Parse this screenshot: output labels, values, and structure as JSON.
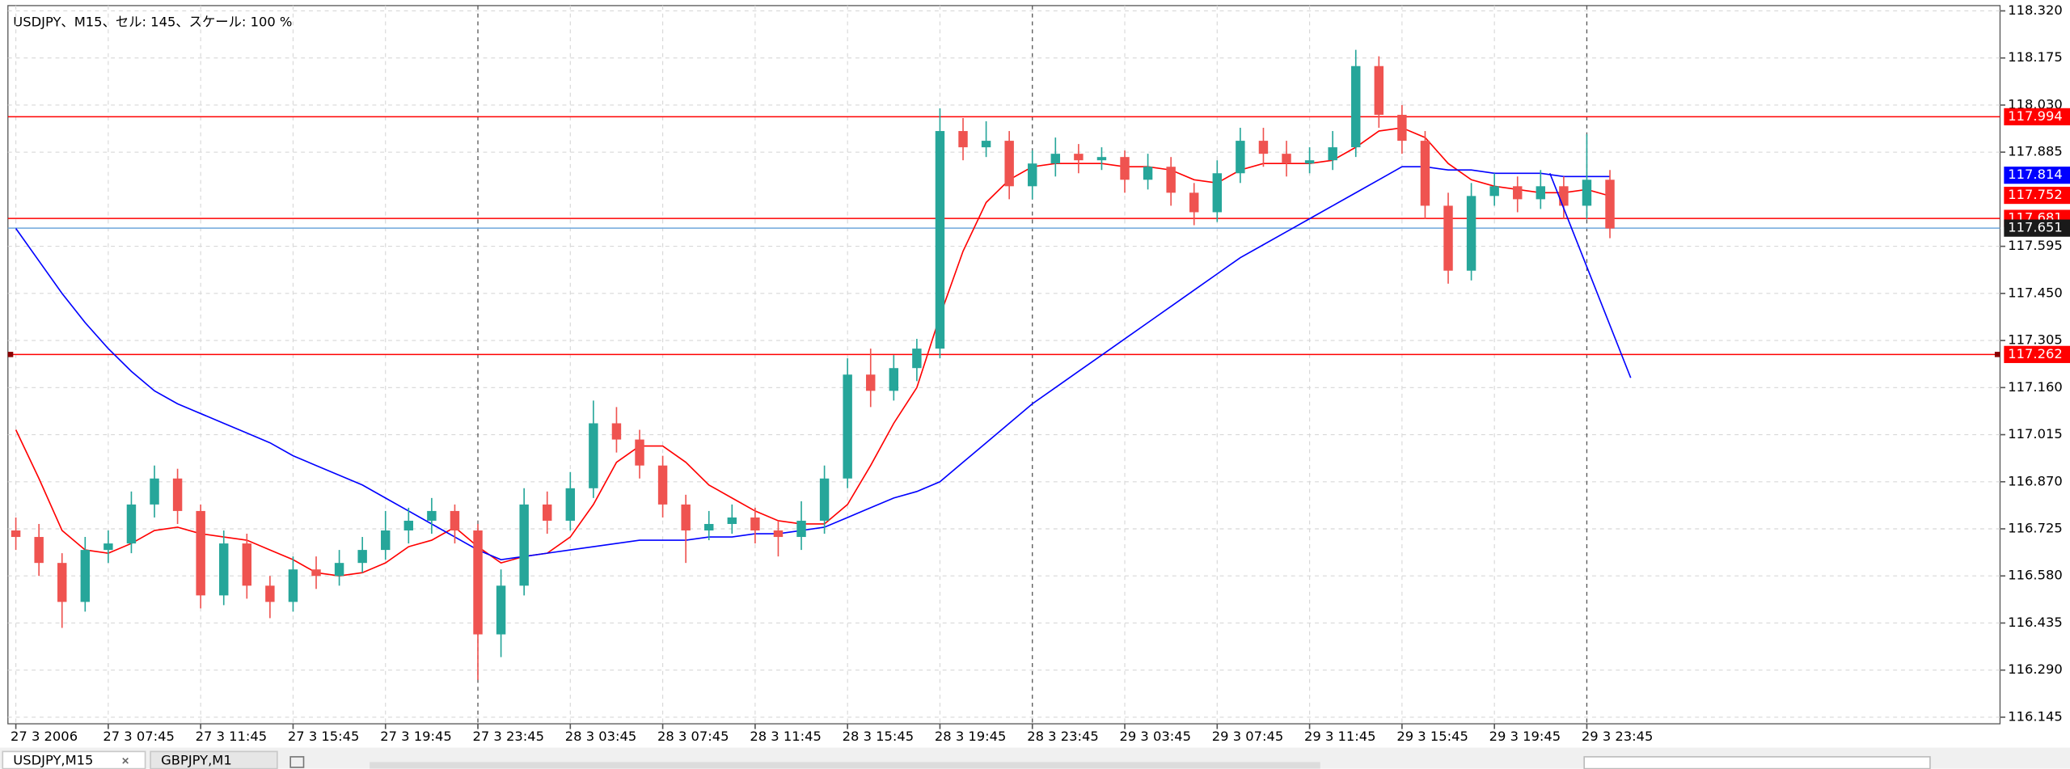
{
  "chart_data": {
    "type": "candlestick",
    "title": "USDJPY、M15、セル: 145、スケール: 100 %",
    "up_color": "#26a69a",
    "down_color": "#ef5350",
    "candles": [
      [
        116.72,
        116.76,
        116.66,
        116.7
      ],
      [
        116.7,
        116.74,
        116.58,
        116.62
      ],
      [
        116.62,
        116.65,
        116.42,
        116.5
      ],
      [
        116.5,
        116.7,
        116.47,
        116.66
      ],
      [
        116.66,
        116.72,
        116.62,
        116.68
      ],
      [
        116.68,
        116.84,
        116.65,
        116.8
      ],
      [
        116.8,
        116.92,
        116.76,
        116.88
      ],
      [
        116.88,
        116.91,
        116.74,
        116.78
      ],
      [
        116.78,
        116.8,
        116.48,
        116.52
      ],
      [
        116.52,
        116.72,
        116.49,
        116.68
      ],
      [
        116.68,
        116.71,
        116.51,
        116.55
      ],
      [
        116.55,
        116.58,
        116.45,
        116.5
      ],
      [
        116.5,
        116.64,
        116.47,
        116.6
      ],
      [
        116.6,
        116.64,
        116.54,
        116.58
      ],
      [
        116.58,
        116.66,
        116.55,
        116.62
      ],
      [
        116.62,
        116.7,
        116.59,
        116.66
      ],
      [
        116.66,
        116.78,
        116.63,
        116.72
      ],
      [
        116.72,
        116.79,
        116.68,
        116.75
      ],
      [
        116.75,
        116.82,
        116.71,
        116.78
      ],
      [
        116.78,
        116.8,
        116.68,
        116.72
      ],
      [
        116.72,
        116.74,
        116.26,
        116.4
      ],
      [
        116.4,
        116.6,
        116.33,
        116.55
      ],
      [
        116.55,
        116.85,
        116.52,
        116.8
      ],
      [
        116.8,
        116.84,
        116.71,
        116.75
      ],
      [
        116.75,
        116.9,
        116.72,
        116.85
      ],
      [
        116.85,
        117.12,
        116.82,
        117.05
      ],
      [
        117.05,
        117.1,
        116.96,
        117.0
      ],
      [
        117.0,
        117.03,
        116.88,
        116.92
      ],
      [
        116.92,
        116.95,
        116.76,
        116.8
      ],
      [
        116.8,
        116.83,
        116.62,
        116.72
      ],
      [
        116.72,
        116.78,
        116.69,
        116.74
      ],
      [
        116.74,
        116.8,
        116.71,
        116.76
      ],
      [
        116.76,
        116.79,
        116.68,
        116.72
      ],
      [
        116.72,
        116.75,
        116.64,
        116.7
      ],
      [
        116.7,
        116.81,
        116.66,
        116.75
      ],
      [
        116.75,
        116.92,
        116.71,
        116.88
      ],
      [
        116.88,
        117.25,
        116.85,
        117.2
      ],
      [
        117.2,
        117.28,
        117.1,
        117.15
      ],
      [
        117.15,
        117.26,
        117.12,
        117.22
      ],
      [
        117.22,
        117.31,
        117.18,
        117.28
      ],
      [
        117.28,
        118.02,
        117.25,
        117.95
      ],
      [
        117.95,
        117.99,
        117.86,
        117.9
      ],
      [
        117.9,
        117.98,
        117.87,
        117.92
      ],
      [
        117.92,
        117.95,
        117.74,
        117.78
      ],
      [
        117.78,
        117.89,
        117.74,
        117.85
      ],
      [
        117.85,
        117.93,
        117.81,
        117.88
      ],
      [
        117.88,
        117.91,
        117.82,
        117.86
      ],
      [
        117.86,
        117.9,
        117.83,
        117.87
      ],
      [
        117.87,
        117.89,
        117.76,
        117.8
      ],
      [
        117.8,
        117.88,
        117.77,
        117.84
      ],
      [
        117.84,
        117.87,
        117.72,
        117.76
      ],
      [
        117.76,
        117.79,
        117.66,
        117.7
      ],
      [
        117.7,
        117.86,
        117.67,
        117.82
      ],
      [
        117.82,
        117.96,
        117.79,
        117.92
      ],
      [
        117.92,
        117.96,
        117.84,
        117.88
      ],
      [
        117.88,
        117.92,
        117.81,
        117.85
      ],
      [
        117.85,
        117.9,
        117.82,
        117.86
      ],
      [
        117.86,
        117.95,
        117.83,
        117.9
      ],
      [
        117.9,
        118.2,
        117.87,
        118.15
      ],
      [
        118.15,
        118.18,
        117.96,
        118.0
      ],
      [
        118.0,
        118.03,
        117.88,
        117.92
      ],
      [
        117.92,
        117.95,
        117.68,
        117.72
      ],
      [
        117.72,
        117.76,
        117.48,
        117.52
      ],
      [
        117.52,
        117.79,
        117.49,
        117.75
      ],
      [
        117.75,
        117.82,
        117.72,
        117.78
      ],
      [
        117.78,
        117.81,
        117.7,
        117.74
      ],
      [
        117.74,
        117.83,
        117.71,
        117.78
      ],
      [
        117.78,
        117.81,
        117.68,
        117.72
      ],
      [
        117.72,
        117.94,
        117.68,
        117.8
      ],
      [
        117.8,
        117.83,
        117.62,
        117.65
      ]
    ],
    "series": [
      {
        "color": "#ff0000",
        "current": 117.752,
        "values": [
          117.03,
          116.88,
          116.72,
          116.66,
          116.65,
          116.68,
          116.72,
          116.73,
          116.71,
          116.7,
          116.69,
          116.66,
          116.63,
          116.59,
          116.58,
          116.59,
          116.62,
          116.67,
          116.69,
          116.73,
          116.67,
          116.62,
          116.64,
          116.65,
          116.7,
          116.8,
          116.93,
          116.98,
          116.98,
          116.93,
          116.86,
          116.82,
          116.78,
          116.75,
          116.74,
          116.74,
          116.8,
          116.92,
          117.05,
          117.16,
          117.38,
          117.58,
          117.73,
          117.8,
          117.84,
          117.85,
          117.85,
          117.85,
          117.84,
          117.84,
          117.83,
          117.8,
          117.79,
          117.83,
          117.85,
          117.85,
          117.85,
          117.86,
          117.9,
          117.95,
          117.96,
          117.93,
          117.85,
          117.8,
          117.78,
          117.77,
          117.76,
          117.76,
          117.77,
          117.75
        ]
      },
      {
        "color": "#0000ff",
        "current": 117.814,
        "values": [
          117.65,
          117.55,
          117.45,
          117.36,
          117.28,
          117.21,
          117.15,
          117.11,
          117.08,
          117.05,
          117.02,
          116.99,
          116.95,
          116.92,
          116.89,
          116.86,
          116.82,
          116.78,
          116.74,
          116.7,
          116.66,
          116.63,
          116.64,
          116.65,
          116.66,
          116.67,
          116.68,
          116.69,
          116.69,
          116.69,
          116.7,
          116.7,
          116.71,
          116.71,
          116.72,
          116.73,
          116.76,
          116.79,
          116.82,
          116.84,
          116.87,
          116.93,
          116.99,
          117.05,
          117.11,
          117.16,
          117.21,
          117.26,
          117.31,
          117.36,
          117.41,
          117.46,
          117.51,
          117.56,
          117.6,
          117.64,
          117.68,
          117.72,
          117.76,
          117.8,
          117.84,
          117.84,
          117.83,
          117.83,
          117.82,
          117.82,
          117.82,
          117.81,
          117.81,
          117.81
        ]
      }
    ],
    "trendline": {
      "color": "#0000ff",
      "x": [
        66.4,
        69.9
      ],
      "values": [
        117.82,
        117.19
      ]
    },
    "levels": [
      {
        "value": 117.994,
        "color": "#ff0000",
        "label_color": "#ff0000"
      },
      {
        "value": 117.681,
        "color": "#ff0000",
        "label_color": "#ff0000"
      },
      {
        "value": 117.651,
        "color": "#6fa8dc",
        "label_color": "#1a1a1a"
      },
      {
        "value": 117.262,
        "color": "#ff0000",
        "label_color": "#ff0000"
      }
    ],
    "x_labels": [
      "27 3 2006",
      "27 3 07:45",
      "27 3 11:45",
      "27 3 15:45",
      "27 3 19:45",
      "27 3 23:45",
      "28 3 03:45",
      "28 3 07:45",
      "28 3 11:45",
      "28 3 15:45",
      "28 3 19:45",
      "28 3 23:45",
      "29 3 03:45",
      "29 3 07:45",
      "29 3 11:45",
      "29 3 15:45",
      "29 3 19:45",
      "29 3 23:45"
    ],
    "ylim": [
      116.145,
      118.32
    ],
    "yticks": [
      {
        "value": 118.32,
        "label": "118.320"
      },
      {
        "value": 118.175,
        "label": "118.175"
      },
      {
        "value": 118.03,
        "label": "118.030"
      },
      {
        "value": 117.885,
        "label": "117.885"
      },
      {
        "value": 117.595,
        "label": "117.595"
      },
      {
        "value": 117.45,
        "label": "117.450"
      },
      {
        "value": 117.305,
        "label": "117.305"
      },
      {
        "value": 117.16,
        "label": "117.160"
      },
      {
        "value": 117.015,
        "label": "117.015"
      },
      {
        "value": 116.87,
        "label": "116.870"
      },
      {
        "value": 116.725,
        "label": "116.725"
      },
      {
        "value": 116.58,
        "label": "116.580"
      },
      {
        "value": 116.435,
        "label": "116.435"
      },
      {
        "value": 116.29,
        "label": "116.290"
      },
      {
        "value": 116.145,
        "label": "116.145"
      }
    ],
    "grid": true,
    "tabs": [
      "USDJPY,M15",
      "GBPJPY,M1"
    ]
  }
}
